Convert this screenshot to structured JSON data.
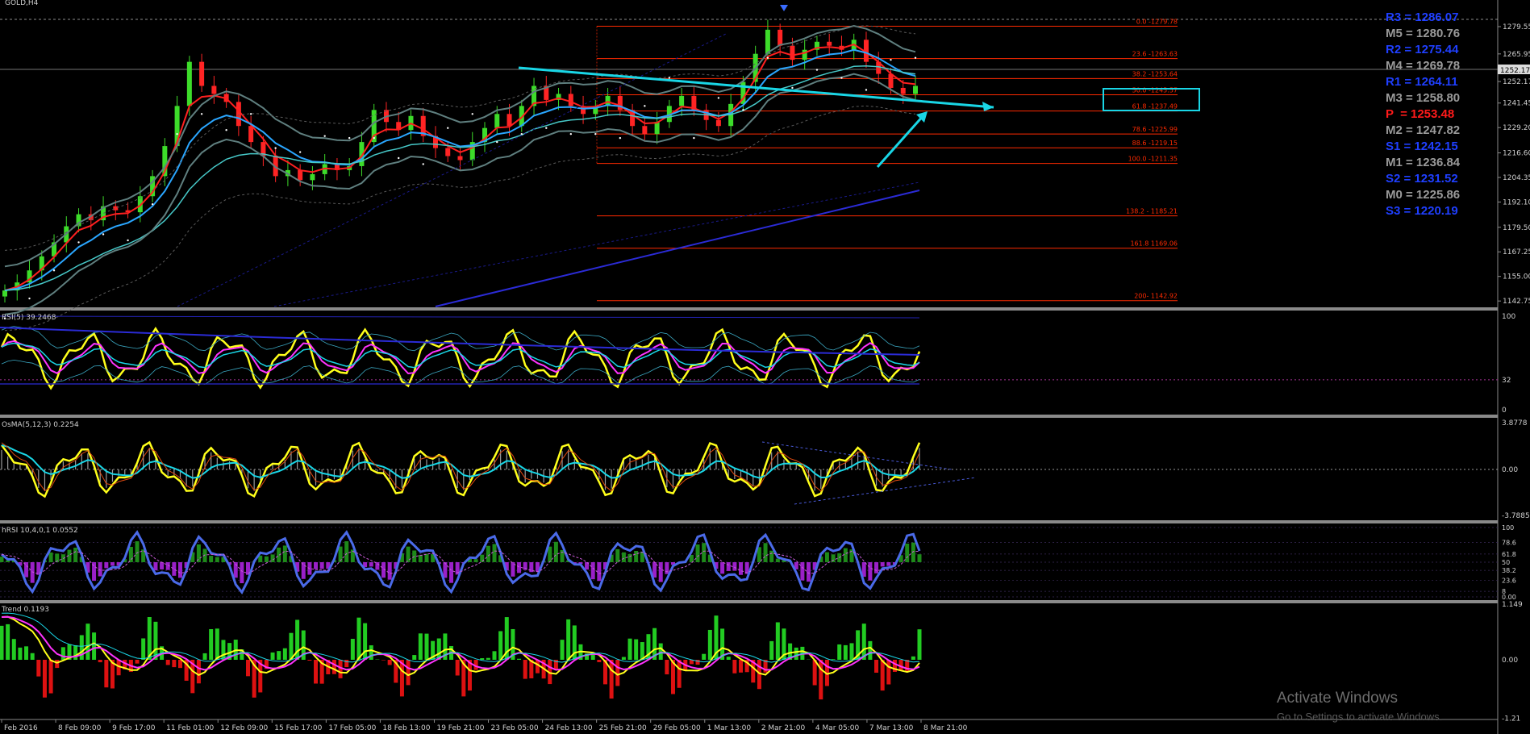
{
  "chart_data": [
    {
      "type": "line",
      "title": "GOLD,H4",
      "price_axis_ticks": [
        "1279.55",
        "1265.95",
        "1252.17",
        "1241.45",
        "1229.20",
        "1216.60",
        "1204.35",
        "1192.10",
        "1179.50",
        "1167.25",
        "1155.00",
        "1142.75"
      ],
      "current_price": "1252.17",
      "ylim": [
        1140,
        1288
      ],
      "fibonacci": [
        {
          "label": "0.0 -1279.78",
          "value": 1279.78
        },
        {
          "label": "23.6 -1263.63",
          "value": 1263.63
        },
        {
          "label": "38.2 -1253.64",
          "value": 1253.64
        },
        {
          "label": "50.0 -1245.57",
          "value": 1245.57
        },
        {
          "label": "61.8 -1237.49",
          "value": 1237.49
        },
        {
          "label": "78.6 -1225.99",
          "value": 1225.99
        },
        {
          "label": "88.6 -1219.15",
          "value": 1219.15
        },
        {
          "label": "100.0 -1211.35",
          "value": 1211.35
        },
        {
          "label": "138.2 - 1185.21",
          "value": 1185.21
        },
        {
          "label": "161.8 1169.06",
          "value": 1169.06
        },
        {
          "label": "200- 1142.92",
          "value": 1142.92
        }
      ],
      "pivots": [
        {
          "label": "R3 = 1286.07",
          "color": "#1f3fff"
        },
        {
          "label": "M5 = 1280.76",
          "color": "#9a9a9a"
        },
        {
          "label": "R2 = 1275.44",
          "color": "#1f3fff"
        },
        {
          "label": "M4 = 1269.78",
          "color": "#9a9a9a"
        },
        {
          "label": "R1 = 1264.11",
          "color": "#1f3fff"
        },
        {
          "label": "M3 = 1258.80",
          "color": "#9a9a9a"
        },
        {
          "label": "P  = 1253.48",
          "color": "#ff1a1a"
        },
        {
          "label": "M2 = 1247.82",
          "color": "#9a9a9a"
        },
        {
          "label": "S1 = 1242.15",
          "color": "#1f3fff"
        },
        {
          "label": "M1 = 1236.84",
          "color": "#9a9a9a"
        },
        {
          "label": "S2 = 1231.52",
          "color": "#1f3fff"
        },
        {
          "label": "M0 = 1225.86",
          "color": "#9a9a9a"
        },
        {
          "label": "S3 = 1220.19",
          "color": "#1f3fff"
        }
      ],
      "close_series": [
        1148,
        1152,
        1158,
        1165,
        1172,
        1180,
        1186,
        1183,
        1190,
        1188,
        1187,
        1195,
        1205,
        1220,
        1240,
        1262,
        1250,
        1246,
        1242,
        1230,
        1222,
        1215,
        1205,
        1208,
        1203,
        1206,
        1211,
        1208,
        1210,
        1222,
        1238,
        1232,
        1228,
        1235,
        1225,
        1219,
        1215,
        1213,
        1222,
        1229,
        1236,
        1230,
        1240,
        1250,
        1243,
        1246,
        1240,
        1236,
        1240,
        1245,
        1238,
        1230,
        1226,
        1232,
        1240,
        1245,
        1238,
        1233,
        1230,
        1241,
        1252,
        1266,
        1278,
        1270,
        1263,
        1268,
        1272,
        1270,
        1268,
        1273,
        1262,
        1256,
        1249,
        1246,
        1250
      ]
    },
    {
      "type": "line",
      "title": "RSI(5) 39.2468",
      "ticks": [
        "100",
        "32",
        "0"
      ],
      "ylim": [
        0,
        100
      ]
    },
    {
      "type": "line",
      "title": "OsMA(5,12,3) 0.2254",
      "ticks": [
        "3.8778",
        "0.00",
        "-3.7885"
      ]
    },
    {
      "type": "bar",
      "title": "hRSI 10,4,0,1 0.0552",
      "ticks": [
        "100",
        "78.6",
        "61.8",
        "50",
        "38.2",
        "23.6",
        "8",
        "0.00"
      ]
    },
    {
      "type": "bar",
      "title": "Trend 0.1193",
      "ticks": [
        "1.149",
        "0.00",
        "-1.21"
      ]
    }
  ],
  "x_axis_labels": [
    "Feb 2016",
    "8 Feb 09:00",
    "9 Feb 17:00",
    "11 Feb 01:00",
    "12 Feb 09:00",
    "15 Feb 17:00",
    "17 Feb 05:00",
    "18 Feb 13:00",
    "19 Feb 21:00",
    "23 Feb 05:00",
    "24 Feb 13:00",
    "25 Feb 21:00",
    "29 Feb 05:00",
    "1 Mar 13:00",
    "2 Mar 21:00",
    "4 Mar 05:00",
    "7 Mar 13:00",
    "8 Mar 21:00"
  ],
  "watermark": {
    "line1": "Activate Windows",
    "line2": "Go to Settings to activate Windows."
  },
  "colors": {
    "background": "#000000",
    "bull": "#3ddc2a",
    "bear": "#ff2424",
    "fib": "#ff2a00",
    "cyan": "#19d6e6",
    "yellow": "#ffff1a",
    "magenta": "#ff33ff",
    "blue": "#2b2bd6"
  }
}
